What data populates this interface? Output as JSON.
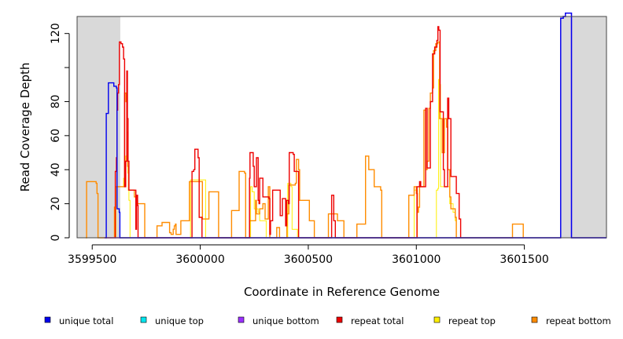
{
  "chart_data": {
    "type": "line",
    "xlabel": "Coordinate in Reference Genome",
    "ylabel": "Read Coverage Depth",
    "xlim": [
      3599430,
      3601880
    ],
    "ylim": [
      0,
      130
    ],
    "x_ticks": [
      3599500,
      3600000,
      3600500,
      3601000,
      3601500
    ],
    "x_tick_labels": [
      "3599500",
      "3600000",
      "3600500",
      "3601000",
      "3601500"
    ],
    "y_ticks": [
      0,
      20,
      40,
      60,
      80,
      100,
      120
    ],
    "y_tick_labels": [
      "0",
      "20",
      "40",
      "60",
      "80",
      "",
      "120"
    ],
    "shaded_regions": [
      {
        "x": [
          3599430,
          3599630
        ],
        "color": "#d9d9d9"
      },
      {
        "x": [
          3601665,
          3601880
        ],
        "color": "#d9d9d9"
      }
    ],
    "legend_position": "bottom",
    "series": [
      {
        "name": "unique total",
        "color": "#0000ee",
        "points": [
          [
            3599560,
            0
          ],
          [
            3599565,
            73
          ],
          [
            3599575,
            91
          ],
          [
            3599600,
            89
          ],
          [
            3599612,
            88
          ],
          [
            3599615,
            17
          ],
          [
            3599625,
            15
          ],
          [
            3599628,
            0
          ],
          [
            3601662,
            0
          ],
          [
            3601668,
            129
          ],
          [
            3601680,
            130
          ],
          [
            3601690,
            132
          ],
          [
            3601715,
            132
          ],
          [
            3601718,
            0
          ],
          [
            3601880,
            0
          ]
        ]
      },
      {
        "name": "unique top",
        "color": "#00e5ee",
        "points": []
      },
      {
        "name": "unique bottom",
        "color": "#9b30ff",
        "points": [
          [
            3599555,
            0
          ],
          [
            3601665,
            0
          ],
          [
            3601668,
            129
          ],
          [
            3601680,
            130
          ],
          [
            3601690,
            132
          ],
          [
            3601715,
            132
          ],
          [
            3601718,
            0
          ],
          [
            3601880,
            0
          ]
        ]
      },
      {
        "name": "repeat total",
        "color": "#ee0000",
        "points": [
          [
            3599605,
            0
          ],
          [
            3599607,
            39
          ],
          [
            3599612,
            47
          ],
          [
            3599615,
            75
          ],
          [
            3599618,
            85
          ],
          [
            3599622,
            90
          ],
          [
            3599626,
            115
          ],
          [
            3599633,
            114
          ],
          [
            3599640,
            112
          ],
          [
            3599645,
            105
          ],
          [
            3599650,
            30
          ],
          [
            3599655,
            45
          ],
          [
            3599660,
            98
          ],
          [
            3599663,
            70
          ],
          [
            3599666,
            45
          ],
          [
            3599670,
            28
          ],
          [
            3599700,
            28
          ],
          [
            3599702,
            5
          ],
          [
            3599705,
            25
          ],
          [
            3599710,
            19
          ],
          [
            3599712,
            0
          ],
          [
            3599960,
            0
          ],
          [
            3599962,
            39
          ],
          [
            3599970,
            40
          ],
          [
            3599975,
            52
          ],
          [
            3599985,
            52
          ],
          [
            3599990,
            47
          ],
          [
            3599995,
            12
          ],
          [
            3600005,
            12
          ],
          [
            3600008,
            0
          ],
          [
            3600225,
            0
          ],
          [
            3600228,
            35
          ],
          [
            3600230,
            50
          ],
          [
            3600245,
            42
          ],
          [
            3600250,
            30
          ],
          [
            3600260,
            47
          ],
          [
            3600268,
            22
          ],
          [
            3600272,
            20
          ],
          [
            3600275,
            35
          ],
          [
            3600290,
            24
          ],
          [
            3600318,
            23
          ],
          [
            3600322,
            2
          ],
          [
            3600325,
            10
          ],
          [
            3600335,
            28
          ],
          [
            3600360,
            28
          ],
          [
            3600370,
            13
          ],
          [
            3600380,
            23
          ],
          [
            3600395,
            7
          ],
          [
            3600400,
            22
          ],
          [
            3600408,
            20
          ],
          [
            3600412,
            50
          ],
          [
            3600430,
            49
          ],
          [
            3600435,
            39
          ],
          [
            3600450,
            39
          ],
          [
            3600455,
            0
          ],
          [
            3600605,
            0
          ],
          [
            3600608,
            25
          ],
          [
            3600618,
            10
          ],
          [
            3600625,
            0
          ],
          [
            3601000,
            0
          ],
          [
            3601003,
            30
          ],
          [
            3601015,
            33
          ],
          [
            3601020,
            30
          ],
          [
            3601040,
            30
          ],
          [
            3601043,
            76
          ],
          [
            3601050,
            41
          ],
          [
            3601060,
            41
          ],
          [
            3601065,
            80
          ],
          [
            3601075,
            108
          ],
          [
            3601085,
            112
          ],
          [
            3601095,
            116
          ],
          [
            3601100,
            124
          ],
          [
            3601104,
            122
          ],
          [
            3601110,
            74
          ],
          [
            3601125,
            40
          ],
          [
            3601130,
            30
          ],
          [
            3601140,
            30
          ],
          [
            3601145,
            82
          ],
          [
            3601150,
            70
          ],
          [
            3601160,
            36
          ],
          [
            3601180,
            36
          ],
          [
            3601185,
            26
          ],
          [
            3601195,
            26
          ],
          [
            3601198,
            11
          ],
          [
            3601205,
            0
          ]
        ]
      },
      {
        "name": "repeat top",
        "color": "#ffef00",
        "points": [
          [
            3599605,
            0
          ],
          [
            3599610,
            30
          ],
          [
            3599640,
            30
          ],
          [
            3599645,
            35
          ],
          [
            3599650,
            40
          ],
          [
            3599655,
            48
          ],
          [
            3599660,
            45
          ],
          [
            3599665,
            38
          ],
          [
            3599670,
            22
          ],
          [
            3599675,
            0
          ],
          [
            3599950,
            0
          ],
          [
            3599955,
            34
          ],
          [
            3600020,
            34
          ],
          [
            3600025,
            0
          ],
          [
            3600230,
            0
          ],
          [
            3600233,
            30
          ],
          [
            3600240,
            27
          ],
          [
            3600250,
            17
          ],
          [
            3600268,
            15
          ],
          [
            3600275,
            10
          ],
          [
            3600300,
            10
          ],
          [
            3600305,
            0
          ],
          [
            3600400,
            0
          ],
          [
            3600405,
            32
          ],
          [
            3600420,
            30
          ],
          [
            3600425,
            5
          ],
          [
            3600445,
            5
          ],
          [
            3600450,
            0
          ],
          [
            3600985,
            0
          ],
          [
            3600990,
            28
          ],
          [
            3601000,
            28
          ],
          [
            3601005,
            0
          ],
          [
            3601090,
            0
          ],
          [
            3601093,
            28
          ],
          [
            3601100,
            29
          ],
          [
            3601103,
            93
          ],
          [
            3601107,
            90
          ],
          [
            3601112,
            30
          ],
          [
            3601150,
            30
          ],
          [
            3601155,
            20
          ],
          [
            3601170,
            15
          ],
          [
            3601180,
            10
          ],
          [
            3601185,
            0
          ]
        ]
      },
      {
        "name": "repeat bottom",
        "color": "#ff8c00",
        "points": [
          [
            3599470,
            0
          ],
          [
            3599474,
            33
          ],
          [
            3599505,
            33
          ],
          [
            3599518,
            32
          ],
          [
            3599522,
            26
          ],
          [
            3599527,
            0
          ],
          [
            3599600,
            0
          ],
          [
            3599603,
            18
          ],
          [
            3599608,
            30
          ],
          [
            3599645,
            30
          ],
          [
            3599650,
            85
          ],
          [
            3599656,
            80
          ],
          [
            3599660,
            62
          ],
          [
            3599664,
            42
          ],
          [
            3599668,
            28
          ],
          [
            3599690,
            28
          ],
          [
            3599695,
            24
          ],
          [
            3599702,
            22
          ],
          [
            3599710,
            20
          ],
          [
            3599740,
            20
          ],
          [
            3599743,
            0
          ],
          [
            3599795,
            0
          ],
          [
            3599800,
            7
          ],
          [
            3599820,
            7
          ],
          [
            3599823,
            9
          ],
          [
            3599855,
            9
          ],
          [
            3599858,
            3
          ],
          [
            3599865,
            2
          ],
          [
            3599875,
            5
          ],
          [
            3599880,
            7
          ],
          [
            3599885,
            8
          ],
          [
            3599888,
            2
          ],
          [
            3599905,
            2
          ],
          [
            3599910,
            10
          ],
          [
            3599945,
            10
          ],
          [
            3599950,
            33
          ],
          [
            3600005,
            33
          ],
          [
            3600010,
            11
          ],
          [
            3600035,
            11
          ],
          [
            3600040,
            27
          ],
          [
            3600080,
            27
          ],
          [
            3600085,
            0
          ],
          [
            3600140,
            0
          ],
          [
            3600145,
            16
          ],
          [
            3600175,
            16
          ],
          [
            3600180,
            39
          ],
          [
            3600205,
            38
          ],
          [
            3600210,
            0
          ],
          [
            3600225,
            0
          ],
          [
            3600228,
            10
          ],
          [
            3600250,
            10
          ],
          [
            3600256,
            22
          ],
          [
            3600260,
            14
          ],
          [
            3600275,
            17
          ],
          [
            3600290,
            20
          ],
          [
            3600300,
            11
          ],
          [
            3600310,
            11
          ],
          [
            3600315,
            30
          ],
          [
            3600322,
            0
          ],
          [
            3600350,
            0
          ],
          [
            3600354,
            6
          ],
          [
            3600363,
            6
          ],
          [
            3600367,
            0
          ],
          [
            3600398,
            0
          ],
          [
            3600401,
            14
          ],
          [
            3600410,
            31
          ],
          [
            3600440,
            32
          ],
          [
            3600445,
            46
          ],
          [
            3600455,
            40
          ],
          [
            3600460,
            22
          ],
          [
            3600500,
            22
          ],
          [
            3600505,
            10
          ],
          [
            3600520,
            10
          ],
          [
            3600528,
            0
          ],
          [
            3600588,
            0
          ],
          [
            3600593,
            14
          ],
          [
            3600630,
            14
          ],
          [
            3600635,
            10
          ],
          [
            3600660,
            10
          ],
          [
            3600665,
            0
          ],
          [
            3600720,
            0
          ],
          [
            3600725,
            8
          ],
          [
            3600760,
            8
          ],
          [
            3600765,
            48
          ],
          [
            3600780,
            40
          ],
          [
            3600800,
            40
          ],
          [
            3600805,
            30
          ],
          [
            3600835,
            28
          ],
          [
            3600840,
            0
          ],
          [
            3600960,
            0
          ],
          [
            3600965,
            25
          ],
          [
            3600985,
            25
          ],
          [
            3600990,
            30
          ],
          [
            3601000,
            26
          ],
          [
            3601005,
            15
          ],
          [
            3601010,
            18
          ],
          [
            3601015,
            30
          ],
          [
            3601030,
            30
          ],
          [
            3601035,
            75
          ],
          [
            3601043,
            40
          ],
          [
            3601050,
            45
          ],
          [
            3601058,
            76
          ],
          [
            3601065,
            85
          ],
          [
            3601075,
            88
          ],
          [
            3601080,
            110
          ],
          [
            3601090,
            114
          ],
          [
            3601100,
            115
          ],
          [
            3601108,
            70
          ],
          [
            3601120,
            50
          ],
          [
            3601130,
            70
          ],
          [
            3601140,
            65
          ],
          [
            3601145,
            40
          ],
          [
            3601155,
            24
          ],
          [
            3601160,
            17
          ],
          [
            3601175,
            17
          ],
          [
            3601180,
            12
          ],
          [
            3601185,
            0
          ],
          [
            3601440,
            0
          ],
          [
            3601445,
            8
          ],
          [
            3601490,
            8
          ],
          [
            3601495,
            0
          ]
        ]
      }
    ]
  }
}
